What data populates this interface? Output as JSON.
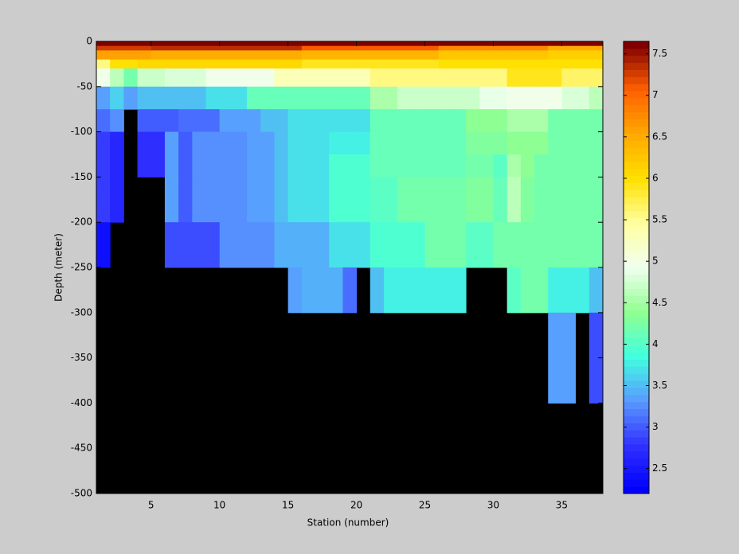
{
  "chart_data": {
    "type": "heatmap",
    "xlabel": "Station (number)",
    "ylabel": "Depth (meter)",
    "xlim": [
      1,
      38
    ],
    "xticks": [
      5,
      10,
      15,
      20,
      25,
      30,
      35
    ],
    "ylim": [
      -500,
      0
    ],
    "yticks": [
      -500,
      -450,
      -400,
      -350,
      -300,
      -250,
      -200,
      -150,
      -100,
      -50,
      0
    ],
    "x_edges": [
      1,
      2,
      3,
      4,
      5,
      6,
      7,
      8,
      9,
      10,
      11,
      12,
      13,
      14,
      15,
      16,
      17,
      18,
      19,
      20,
      21,
      22,
      23,
      24,
      25,
      26,
      27,
      28,
      29,
      30,
      31,
      32,
      33,
      34,
      35,
      36,
      37,
      38
    ],
    "y_edges": [
      0,
      -5,
      -10,
      -20,
      -30,
      -50,
      -75,
      -100,
      -125,
      -150,
      -200,
      -250,
      -300,
      -400,
      -500
    ],
    "z": [
      [
        7.7,
        7.7,
        7.7,
        7.7,
        7.7,
        7.7,
        7.7,
        7.7,
        7.7,
        7.7,
        7.7,
        7.7,
        7.7,
        7.7,
        7.7,
        7.7,
        7.7,
        7.7,
        7.7,
        7.7,
        7.7,
        7.7,
        7.7,
        7.7,
        7.7,
        7.7,
        7.7,
        7.7,
        7.7,
        7.7,
        7.7,
        7.7,
        7.7,
        7.7,
        7.7,
        7.7,
        7.7
      ],
      [
        7.3,
        7.3,
        7.3,
        7.3,
        7.4,
        7.4,
        7.4,
        7.4,
        7.4,
        7.4,
        7.4,
        7.4,
        7.4,
        7.4,
        7.4,
        7.1,
        7.1,
        7.1,
        7.1,
        7.1,
        7.1,
        7.1,
        7.1,
        7.1,
        7.1,
        6.8,
        6.8,
        6.8,
        6.8,
        6.8,
        6.8,
        6.8,
        6.8,
        6.5,
        6.5,
        6.5,
        6.5
      ],
      [
        6.6,
        6.6,
        6.6,
        6.6,
        6.5,
        6.5,
        6.5,
        6.5,
        6.5,
        6.5,
        6.5,
        6.5,
        6.5,
        6.5,
        6.5,
        6.4,
        6.4,
        6.4,
        6.4,
        6.4,
        6.4,
        6.4,
        6.4,
        6.4,
        6.4,
        6.3,
        6.3,
        6.3,
        6.3,
        6.3,
        6.3,
        6.3,
        6.3,
        6.2,
        6.2,
        6.2,
        6.2
      ],
      [
        5.6,
        6.0,
        6.0,
        6.1,
        6.1,
        6.1,
        6.1,
        6.1,
        6.1,
        6.1,
        6.1,
        6.1,
        6.1,
        6.1,
        6.1,
        5.9,
        5.9,
        5.9,
        5.9,
        5.9,
        5.9,
        5.9,
        5.9,
        5.9,
        5.9,
        6.0,
        6.0,
        6.0,
        6.0,
        6.0,
        6.0,
        6.0,
        6.0,
        6.0,
        6.0,
        6.0,
        6.0
      ],
      [
        5.0,
        4.6,
        4.2,
        4.7,
        4.7,
        4.8,
        4.8,
        4.8,
        5.0,
        5.0,
        5.0,
        5.0,
        5.0,
        5.3,
        5.3,
        5.3,
        5.3,
        5.3,
        5.3,
        5.3,
        5.6,
        5.6,
        5.6,
        5.6,
        5.6,
        5.6,
        5.6,
        5.6,
        5.6,
        5.6,
        5.9,
        5.9,
        5.9,
        5.9,
        5.7,
        5.7,
        5.7
      ],
      [
        3.3,
        3.6,
        3.3,
        3.5,
        3.5,
        3.5,
        3.5,
        3.5,
        3.7,
        3.7,
        3.7,
        4.1,
        4.1,
        4.1,
        4.1,
        4.1,
        4.1,
        4.1,
        4.1,
        4.1,
        4.5,
        4.5,
        4.7,
        4.7,
        4.7,
        4.7,
        4.7,
        4.7,
        4.9,
        4.9,
        5.0,
        5.0,
        5.0,
        5.0,
        4.8,
        4.8,
        4.6
      ],
      [
        3.1,
        3.2,
        null,
        3.0,
        3.0,
        3.0,
        3.1,
        3.1,
        3.1,
        3.3,
        3.3,
        3.3,
        3.5,
        3.5,
        3.7,
        3.7,
        3.7,
        3.7,
        3.7,
        3.7,
        4.1,
        4.1,
        4.1,
        4.1,
        4.1,
        4.1,
        4.1,
        4.4,
        4.4,
        4.4,
        4.5,
        4.5,
        4.5,
        4.2,
        4.2,
        4.2,
        4.2
      ],
      [
        2.8,
        2.6,
        null,
        2.7,
        2.7,
        3.3,
        3.0,
        3.2,
        3.2,
        3.2,
        3.2,
        3.3,
        3.3,
        3.5,
        3.7,
        3.7,
        3.7,
        3.8,
        3.8,
        3.8,
        4.1,
        4.1,
        4.1,
        4.1,
        4.1,
        4.1,
        4.1,
        4.3,
        4.3,
        4.3,
        4.4,
        4.4,
        4.4,
        4.2,
        4.2,
        4.2,
        4.2
      ],
      [
        2.8,
        2.6,
        null,
        2.7,
        2.7,
        3.3,
        3.0,
        3.2,
        3.2,
        3.2,
        3.2,
        3.3,
        3.3,
        3.5,
        3.7,
        3.7,
        3.7,
        3.9,
        3.9,
        3.9,
        4.1,
        4.1,
        4.1,
        4.1,
        4.1,
        4.1,
        4.1,
        4.2,
        4.2,
        4.0,
        4.5,
        4.4,
        4.2,
        4.2,
        4.2,
        4.2,
        4.2
      ],
      [
        2.8,
        2.6,
        null,
        null,
        null,
        3.3,
        3.0,
        3.2,
        3.2,
        3.2,
        3.2,
        3.3,
        3.3,
        3.5,
        3.7,
        3.7,
        3.7,
        3.9,
        3.9,
        3.9,
        4.0,
        4.0,
        4.2,
        4.2,
        4.2,
        4.2,
        4.2,
        4.3,
        4.3,
        4.1,
        4.6,
        4.3,
        4.2,
        4.2,
        4.2,
        4.2,
        4.2
      ],
      [
        2.4,
        null,
        null,
        null,
        null,
        2.9,
        2.9,
        2.9,
        2.9,
        3.2,
        3.2,
        3.2,
        3.2,
        3.4,
        3.4,
        3.4,
        3.4,
        3.7,
        3.7,
        3.7,
        3.9,
        3.9,
        3.9,
        3.9,
        4.2,
        4.2,
        4.2,
        4.0,
        4.0,
        4.2,
        4.2,
        4.2,
        4.2,
        4.2,
        4.2,
        4.2,
        4.2
      ],
      [
        null,
        null,
        null,
        null,
        null,
        null,
        null,
        null,
        null,
        null,
        null,
        null,
        null,
        null,
        3.3,
        3.4,
        3.4,
        3.4,
        3.1,
        null,
        3.5,
        3.8,
        3.8,
        3.8,
        3.8,
        3.8,
        3.8,
        null,
        null,
        null,
        4.0,
        4.2,
        4.2,
        3.8,
        3.8,
        3.8,
        3.5
      ],
      [
        null,
        null,
        null,
        null,
        null,
        null,
        null,
        null,
        null,
        null,
        null,
        null,
        null,
        null,
        null,
        null,
        null,
        null,
        null,
        null,
        null,
        null,
        null,
        null,
        null,
        null,
        null,
        null,
        null,
        null,
        null,
        null,
        null,
        3.3,
        3.3,
        null,
        2.9
      ],
      [
        null,
        null,
        null,
        null,
        null,
        null,
        null,
        null,
        null,
        null,
        null,
        null,
        null,
        null,
        null,
        null,
        null,
        null,
        null,
        null,
        null,
        null,
        null,
        null,
        null,
        null,
        null,
        null,
        null,
        null,
        null,
        null,
        null,
        null,
        null,
        null,
        null
      ]
    ],
    "nan_color": "#000000",
    "colormap": [
      "#0000ff",
      "#3030ff",
      "#5a9aff",
      "#40ffe0",
      "#90ff90",
      "#f0fff0",
      "#ffffa0",
      "#ffe000",
      "#ffa800",
      "#ff6000",
      "#800000"
    ],
    "clim": [
      2.2,
      7.65
    ],
    "cticks": [
      2.5,
      3,
      3.5,
      4,
      4.5,
      5,
      5.5,
      6,
      6.5,
      7,
      7.5
    ]
  }
}
